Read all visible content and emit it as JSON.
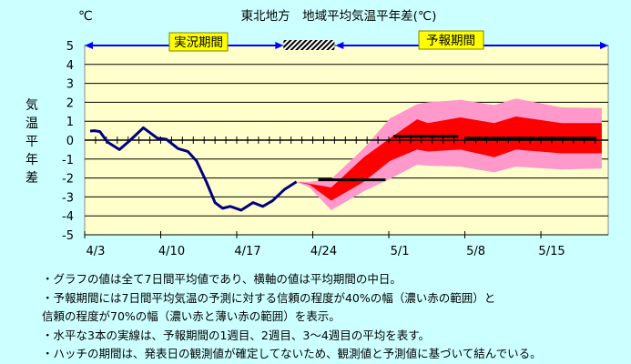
{
  "chart_data": {
    "type": "line",
    "title": "東北地方　地域平均気温平年差(℃)",
    "unit_label": "℃",
    "ylabel": "気温平年差",
    "ylim": [
      -5,
      5
    ],
    "yticks": [
      5,
      4,
      3,
      2,
      1,
      0,
      -1,
      -2,
      -3,
      -4,
      -5
    ],
    "xlim_days_from_4_3": [
      0,
      48.2
    ],
    "xticks": [
      {
        "day": 0,
        "label": "4/3"
      },
      {
        "day": 7,
        "label": "4/10"
      },
      {
        "day": 14,
        "label": "4/17"
      },
      {
        "day": 21,
        "label": "4/24"
      },
      {
        "day": 28,
        "label": "5/1"
      },
      {
        "day": 35,
        "label": "5/8"
      },
      {
        "day": 42,
        "label": "5/15"
      }
    ],
    "grid": true,
    "periods": {
      "observed_label": "実況期間",
      "forecast_label": "予報期間",
      "hatch_days": [
        18.3,
        23
      ]
    },
    "observed": {
      "day": [
        0.5,
        0.9,
        1.4,
        2.1,
        3.2,
        4.2,
        5.4,
        6.7,
        7.5,
        8.6,
        9.5,
        10.3,
        11.2,
        12.0,
        12.7,
        13.4,
        14.4,
        15.5,
        16.4,
        17.3,
        18.4,
        19.5
      ],
      "value": [
        0.48,
        0.5,
        0.45,
        -0.1,
        -0.5,
        0,
        0.65,
        0.1,
        0.05,
        -0.45,
        -0.6,
        -1.1,
        -2.2,
        -3.3,
        -3.6,
        -3.5,
        -3.7,
        -3.3,
        -3.5,
        -3.2,
        -2.6,
        -2.2
      ]
    },
    "forecast_days": [
      19.5,
      20.7,
      22.7,
      25.7,
      28.1,
      30.6,
      31.6,
      34.6,
      37.7,
      39.7,
      43.9,
      47.6
    ],
    "band70_upper": [
      -2.2,
      -2.2,
      -2.05,
      -0.43,
      1.15,
      1.9,
      2.0,
      2.13,
      1.85,
      2.2,
      1.73,
      1.7
    ],
    "band70_lower": [
      -2.2,
      -2.5,
      -3.7,
      -2.7,
      -2.05,
      -1.3,
      -1.35,
      -1.4,
      -1.7,
      -1.4,
      -1.55,
      -1.5
    ],
    "band40_upper": [
      -2.2,
      -2.3,
      -2.5,
      -0.9,
      0.1,
      1.1,
      0.9,
      1.2,
      0.9,
      1.25,
      0.9,
      0.9
    ],
    "band40_lower": [
      -2.2,
      -2.35,
      -3.2,
      -2.2,
      -1.1,
      -0.5,
      -0.6,
      -0.5,
      -0.9,
      -0.5,
      -0.7,
      -0.7
    ],
    "weekly_means": [
      {
        "name": "1週目",
        "start": 21.5,
        "end": 27.7,
        "value": -2.1
      },
      {
        "name": "2週目",
        "start": 28.4,
        "end": 34.4,
        "value": 0.2
      },
      {
        "name": "3〜4週目",
        "start": 35.1,
        "end": 47.1,
        "value": 0.1
      }
    ],
    "colors": {
      "observed": "#000080",
      "band40": "#ff0000",
      "band70": "#ff99cc",
      "plot_bg": "#ffffcc",
      "arrow": "#0000ff"
    }
  },
  "notes": [
    "・グラフの値は全て7日間平均値であり、横軸の値は平均期間の中日。",
    "・予報期間には7日間平均気温の予測に対する信頼の程度が40%の幅（濃い赤の範囲）と",
    "信頼の程度が70%の幅（濃い赤と薄い赤の範囲）を表示。",
    "・水平な3本の実線は、予報期間の1週目、2週目、3〜4週目の平均を表す。",
    "・ハッチの期間は、発表日の観測値が確定してないため、観測値と予測値に基づいて結んでいる。"
  ]
}
